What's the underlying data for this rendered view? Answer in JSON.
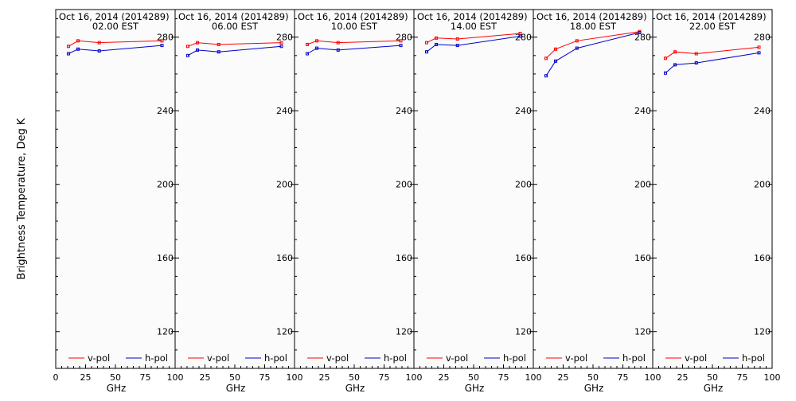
{
  "figure": {
    "ylabel": "Brightness Temperature, Deg K",
    "xlabel": "GHz"
  },
  "colors": {
    "v_pol": "#ff0000",
    "h_pol": "#0000cc",
    "axis": "#000000",
    "panel_bg": "#fbfbfb"
  },
  "chart_data": [
    {
      "type": "line",
      "title": "Oct 16, 2014 (2014289)",
      "subtitle": "02.00 EST",
      "xlabel": "GHz",
      "xlim": [
        0,
        100
      ],
      "ylim": [
        100,
        295
      ],
      "x_ticks": [
        "0",
        "25",
        "50",
        "75",
        "100"
      ],
      "y_ticks": [
        "120",
        "160",
        "200",
        "240",
        "280"
      ],
      "legend": "bottom",
      "series": [
        {
          "name": "v-pol",
          "x": [
            10.65,
            18.7,
            36.5,
            89
          ],
          "y": [
            275,
            278,
            277,
            278
          ]
        },
        {
          "name": "h-pol",
          "x": [
            10.65,
            18.7,
            36.5,
            89
          ],
          "y": [
            271,
            273.5,
            272.5,
            275.5
          ]
        }
      ]
    },
    {
      "type": "line",
      "title": "Oct 16, 2014 (2014289)",
      "subtitle": "06.00 EST",
      "xlabel": "GHz",
      "xlim": [
        0,
        100
      ],
      "ylim": [
        100,
        295
      ],
      "x_ticks": [
        "25",
        "50",
        "75",
        "100"
      ],
      "y_ticks": [
        "120",
        "160",
        "200",
        "240",
        "280"
      ],
      "legend": "bottom",
      "series": [
        {
          "name": "v-pol",
          "x": [
            10.65,
            18.7,
            36.5,
            89
          ],
          "y": [
            275,
            277,
            276,
            277
          ]
        },
        {
          "name": "h-pol",
          "x": [
            10.65,
            18.7,
            36.5,
            89
          ],
          "y": [
            270,
            273,
            272,
            275
          ]
        }
      ]
    },
    {
      "type": "line",
      "title": "Oct 16, 2014 (2014289)",
      "subtitle": "10.00 EST",
      "xlabel": "GHz",
      "xlim": [
        0,
        100
      ],
      "ylim": [
        100,
        295
      ],
      "x_ticks": [
        "25",
        "50",
        "75",
        "100"
      ],
      "y_ticks": [
        "120",
        "160",
        "200",
        "240",
        "280"
      ],
      "legend": "bottom",
      "series": [
        {
          "name": "v-pol",
          "x": [
            10.65,
            18.7,
            36.5,
            89
          ],
          "y": [
            276,
            278,
            277,
            278
          ]
        },
        {
          "name": "h-pol",
          "x": [
            10.65,
            18.7,
            36.5,
            89
          ],
          "y": [
            271,
            274,
            273,
            275.5
          ]
        }
      ]
    },
    {
      "type": "line",
      "title": "Oct 16, 2014 (2014289)",
      "subtitle": "14.00 EST",
      "xlabel": "GHz",
      "xlim": [
        0,
        100
      ],
      "ylim": [
        100,
        295
      ],
      "x_ticks": [
        "25",
        "50",
        "75",
        "100"
      ],
      "y_ticks": [
        "120",
        "160",
        "200",
        "240",
        "280"
      ],
      "legend": "bottom",
      "series": [
        {
          "name": "v-pol",
          "x": [
            10.65,
            18.7,
            36.5,
            89
          ],
          "y": [
            277,
            279.5,
            279,
            282
          ]
        },
        {
          "name": "h-pol",
          "x": [
            10.65,
            18.7,
            36.5,
            89
          ],
          "y": [
            272,
            276,
            275.5,
            280.5
          ]
        }
      ]
    },
    {
      "type": "line",
      "title": "Oct 16, 2014 (2014289)",
      "subtitle": "18.00 EST",
      "xlabel": "GHz",
      "xlim": [
        0,
        100
      ],
      "ylim": [
        100,
        295
      ],
      "x_ticks": [
        "25",
        "50",
        "75",
        "100"
      ],
      "y_ticks": [
        "120",
        "160",
        "200",
        "240",
        "280"
      ],
      "legend": "bottom",
      "series": [
        {
          "name": "v-pol",
          "x": [
            10.65,
            18.7,
            36.5,
            89
          ],
          "y": [
            268.5,
            273.5,
            278,
            283
          ]
        },
        {
          "name": "h-pol",
          "x": [
            10.65,
            18.7,
            36.5,
            89
          ],
          "y": [
            259,
            267,
            274,
            282.5
          ]
        }
      ]
    },
    {
      "type": "line",
      "title": "Oct 16, 2014 (2014289)",
      "subtitle": "22.00 EST",
      "xlabel": "GHz",
      "xlim": [
        0,
        100
      ],
      "ylim": [
        100,
        295
      ],
      "x_ticks": [
        "25",
        "50",
        "75",
        "100"
      ],
      "y_ticks": [
        "120",
        "160",
        "200",
        "240",
        "280"
      ],
      "legend": "bottom",
      "series": [
        {
          "name": "v-pol",
          "x": [
            10.65,
            18.7,
            36.5,
            89
          ],
          "y": [
            268.5,
            272,
            271,
            274.5
          ]
        },
        {
          "name": "h-pol",
          "x": [
            10.65,
            18.7,
            36.5,
            89
          ],
          "y": [
            260.5,
            265,
            266,
            271.5
          ]
        }
      ]
    }
  ]
}
